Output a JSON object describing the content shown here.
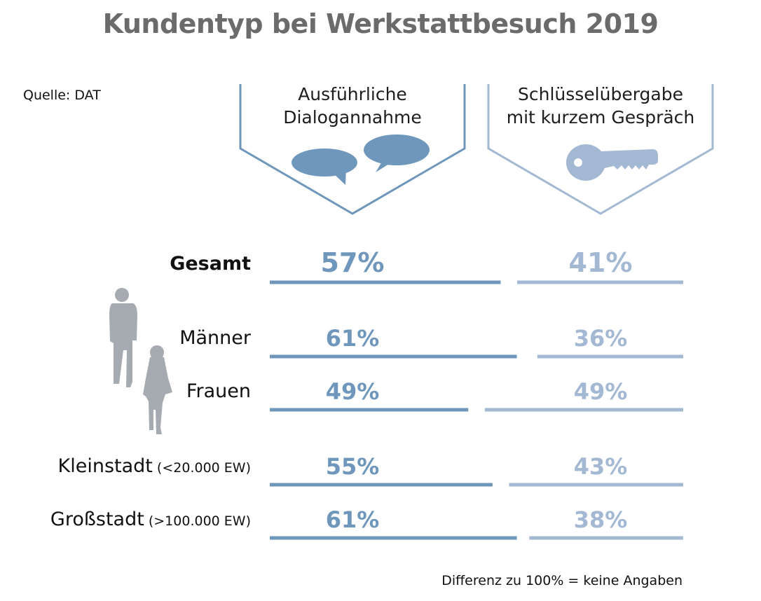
{
  "title": "Kundentyp bei Werkstattbesuch 2019",
  "source": "Quelle: DAT",
  "footnote": "Differenz zu 100% = keine Angaben",
  "colors": {
    "dialog": "#6f97bb",
    "key": "#a3b8d3",
    "title": "#6b6b6b",
    "person": "#a6aab1"
  },
  "chart_data": {
    "type": "bar",
    "orientation": "horizontal-stacked",
    "categories": [
      "Gesamt",
      "Männer",
      "Frauen",
      "Kleinstadt",
      "Großstadt"
    ],
    "category_notes": [
      "",
      "",
      "",
      "(<20.000 EW)",
      "(>100.000 EW)"
    ],
    "series": [
      {
        "name_lines": [
          "Ausführliche",
          "Dialogannahme"
        ],
        "icon": "speech-bubbles-icon",
        "values": [
          57,
          61,
          49,
          55,
          61
        ],
        "labels": [
          "57%",
          "61%",
          "49%",
          "55%",
          "61%"
        ]
      },
      {
        "name_lines": [
          "Schlüsselübergabe",
          "mit kurzem Gespräch"
        ],
        "icon": "key-icon",
        "values": [
          41,
          36,
          49,
          43,
          38
        ],
        "labels": [
          "41%",
          "36%",
          "49%",
          "43%",
          "38%"
        ]
      }
    ],
    "xlim": [
      0,
      100
    ],
    "bold_category": "Gesamt"
  }
}
